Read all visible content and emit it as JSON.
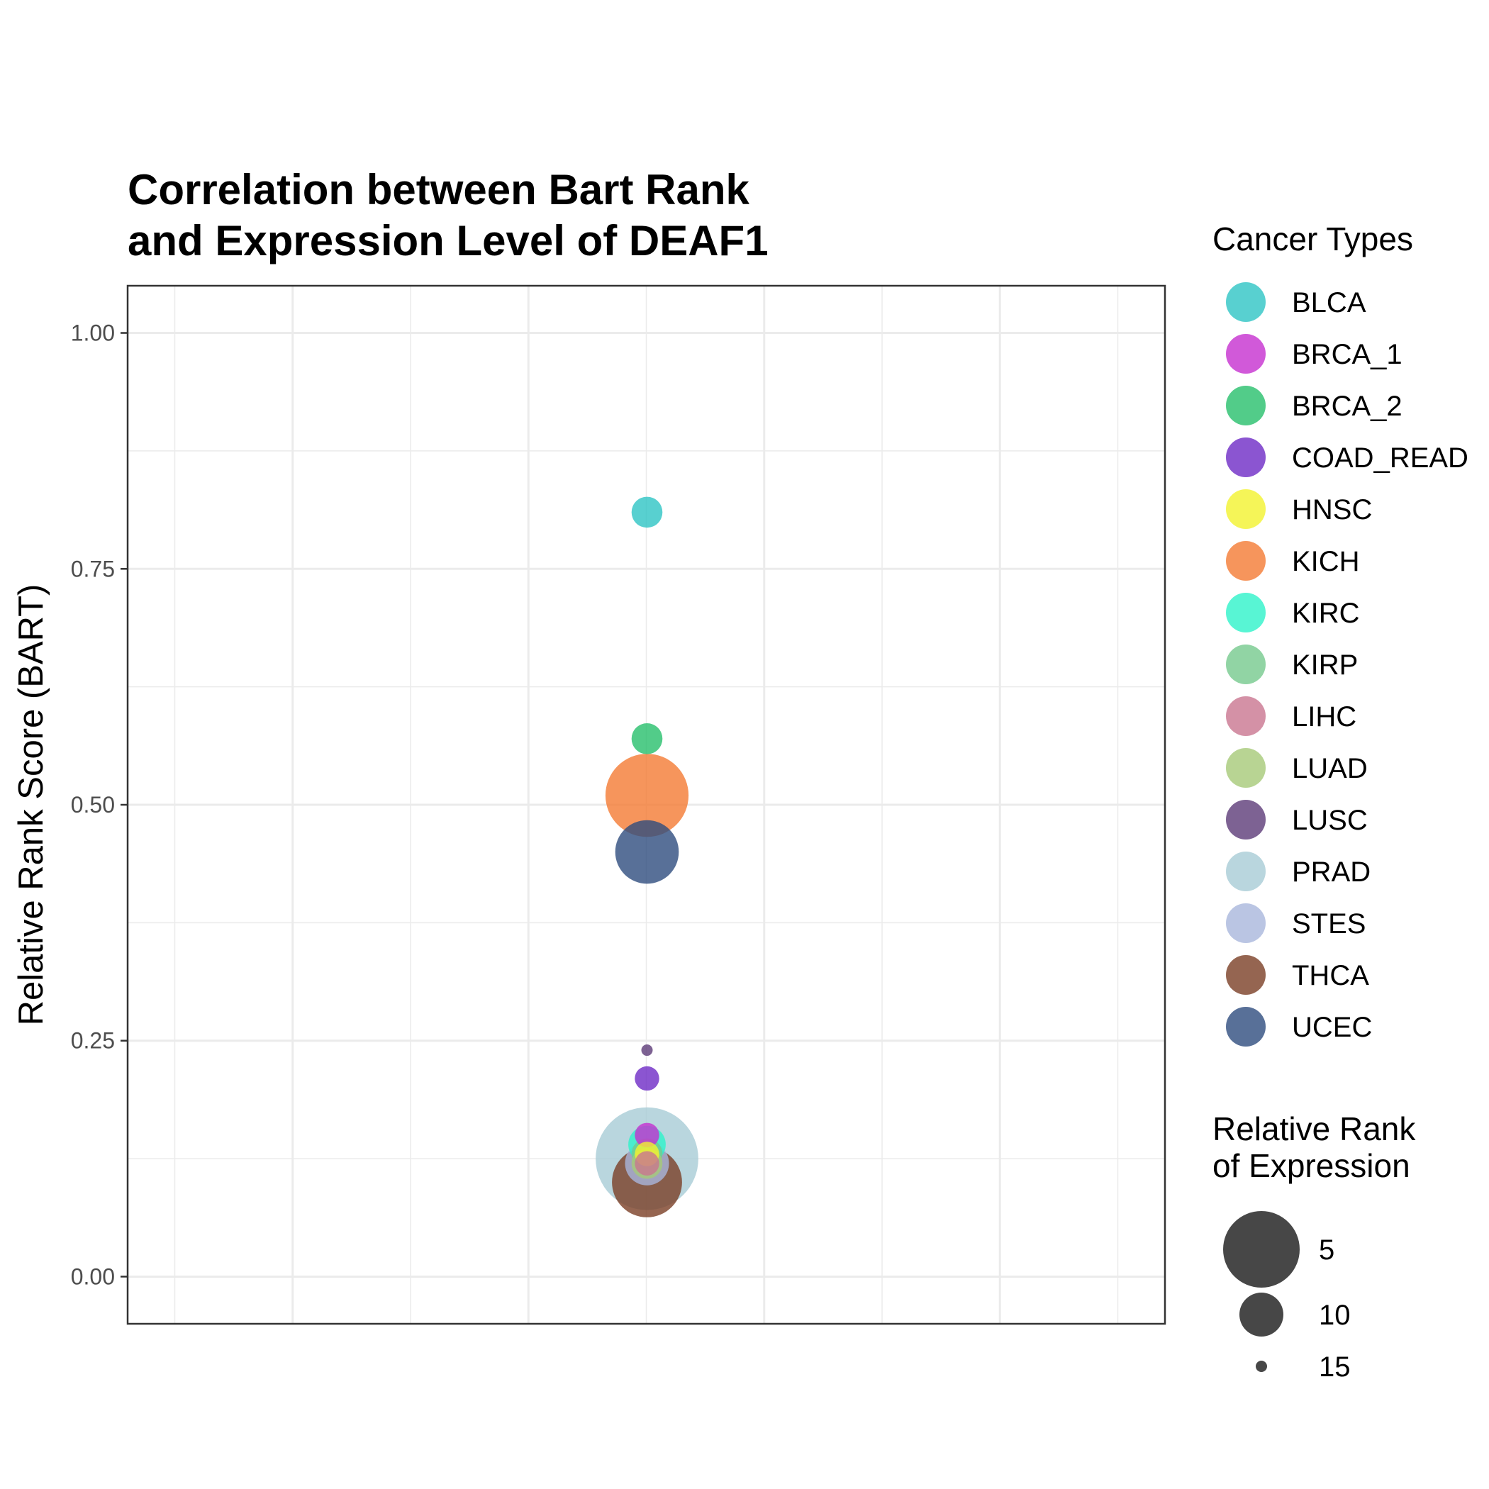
{
  "chart_data": {
    "type": "scatter",
    "title": [
      "Correlation between Bart Rank",
      "and Expression Level of DEAF1"
    ],
    "ylabel": "Relative Rank Score (BART)",
    "xlabel": "",
    "ylim": [
      -0.05,
      1.05
    ],
    "yticks": [
      {
        "value": 0.0,
        "label": "0.00"
      },
      {
        "value": 0.25,
        "label": "0.25"
      },
      {
        "value": 0.5,
        "label": "0.50"
      },
      {
        "value": 0.75,
        "label": "0.75"
      },
      {
        "value": 1.0,
        "label": "1.00"
      }
    ],
    "grid": true,
    "legend_position": "right",
    "color_legend_title": "Cancer Types",
    "size_legend_title": [
      "Relative Rank",
      "of Expression"
    ],
    "size_legend": [
      {
        "label": "5",
        "value": 5
      },
      {
        "label": "10",
        "value": 10
      },
      {
        "label": "15",
        "value": 15
      }
    ],
    "series": [
      {
        "name": "BLCA",
        "color": "#2EC4C4",
        "y": 0.81,
        "rank": 12
      },
      {
        "name": "BRCA_1",
        "color": "#C530CF",
        "y": 0.15,
        "rank": 13
      },
      {
        "name": "BRCA_2",
        "color": "#27BF6B",
        "y": 0.57,
        "rank": 12
      },
      {
        "name": "COAD_READ",
        "color": "#6E2BC6",
        "y": 0.21,
        "rank": 13
      },
      {
        "name": "HNSC",
        "color": "#F2F22E",
        "y": 0.13,
        "rank": 13
      },
      {
        "name": "KICH",
        "color": "#F47A33",
        "y": 0.51,
        "rank": 4
      },
      {
        "name": "KIRC",
        "color": "#2EF2C9",
        "y": 0.14,
        "rank": 11
      },
      {
        "name": "KIRP",
        "color": "#76C98D",
        "y": 0.13,
        "rank": 12
      },
      {
        "name": "LIHC",
        "color": "#C97690",
        "y": 0.12,
        "rank": 13
      },
      {
        "name": "LUAD",
        "color": "#A6C978",
        "y": 0.12,
        "rank": 12
      },
      {
        "name": "LUSC",
        "color": "#5C3B78",
        "y": 0.24,
        "rank": 15
      },
      {
        "name": "PRAD",
        "color": "#A8CCD6",
        "y": 0.125,
        "rank": 1
      },
      {
        "name": "STES",
        "color": "#A9B6DC",
        "y": 0.12,
        "rank": 10
      },
      {
        "name": "THCA",
        "color": "#7B3F26",
        "y": 0.1,
        "rank": 6
      },
      {
        "name": "UCEC",
        "color": "#2E4C7E",
        "y": 0.45,
        "rank": 7
      }
    ]
  }
}
